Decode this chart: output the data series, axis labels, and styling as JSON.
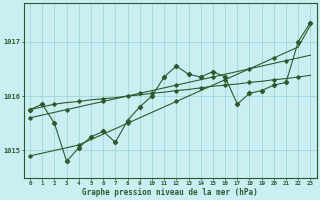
{
  "title": "Graphe pression niveau de la mer (hPa)",
  "bg_color": "#cbeef3",
  "line_color": "#2d5a2d",
  "xlim": [
    -0.5,
    23.5
  ],
  "ylim": [
    1014.5,
    1017.7
  ],
  "yticks": [
    1015,
    1016,
    1017
  ],
  "xticks": [
    0,
    1,
    2,
    3,
    4,
    5,
    6,
    7,
    8,
    9,
    10,
    11,
    12,
    13,
    14,
    15,
    16,
    17,
    18,
    19,
    20,
    21,
    22,
    23
  ],
  "series_spiky": [
    1015.75,
    1015.85,
    1015.5,
    1014.8,
    1015.05,
    1015.25,
    1015.35,
    1015.15,
    1015.55,
    1015.8,
    1016.0,
    1016.35,
    1016.55,
    1016.4,
    1016.35,
    1016.45,
    1016.35,
    1015.85,
    1016.05,
    1016.1,
    1016.2,
    1016.25,
    1017.0,
    1017.35
  ],
  "series_straight1": [
    1015.75,
    1015.8,
    1015.85,
    1015.88,
    1015.9,
    1015.93,
    1015.95,
    1015.97,
    1016.0,
    1016.02,
    1016.05,
    1016.07,
    1016.1,
    1016.12,
    1016.15,
    1016.18,
    1016.2,
    1016.22,
    1016.25,
    1016.27,
    1016.3,
    1016.32,
    1016.35,
    1016.38
  ],
  "series_straight2": [
    1015.6,
    1015.65,
    1015.7,
    1015.75,
    1015.8,
    1015.85,
    1015.9,
    1015.95,
    1016.0,
    1016.05,
    1016.1,
    1016.15,
    1016.2,
    1016.25,
    1016.3,
    1016.35,
    1016.4,
    1016.45,
    1016.5,
    1016.55,
    1016.6,
    1016.65,
    1016.7,
    1016.75
  ],
  "series_steep": [
    1014.9,
    1014.95,
    1015.0,
    1015.05,
    1015.1,
    1015.2,
    1015.3,
    1015.4,
    1015.5,
    1015.6,
    1015.7,
    1015.8,
    1015.9,
    1016.0,
    1016.1,
    1016.2,
    1016.3,
    1016.4,
    1016.5,
    1016.6,
    1016.7,
    1016.8,
    1016.9,
    1017.3
  ]
}
